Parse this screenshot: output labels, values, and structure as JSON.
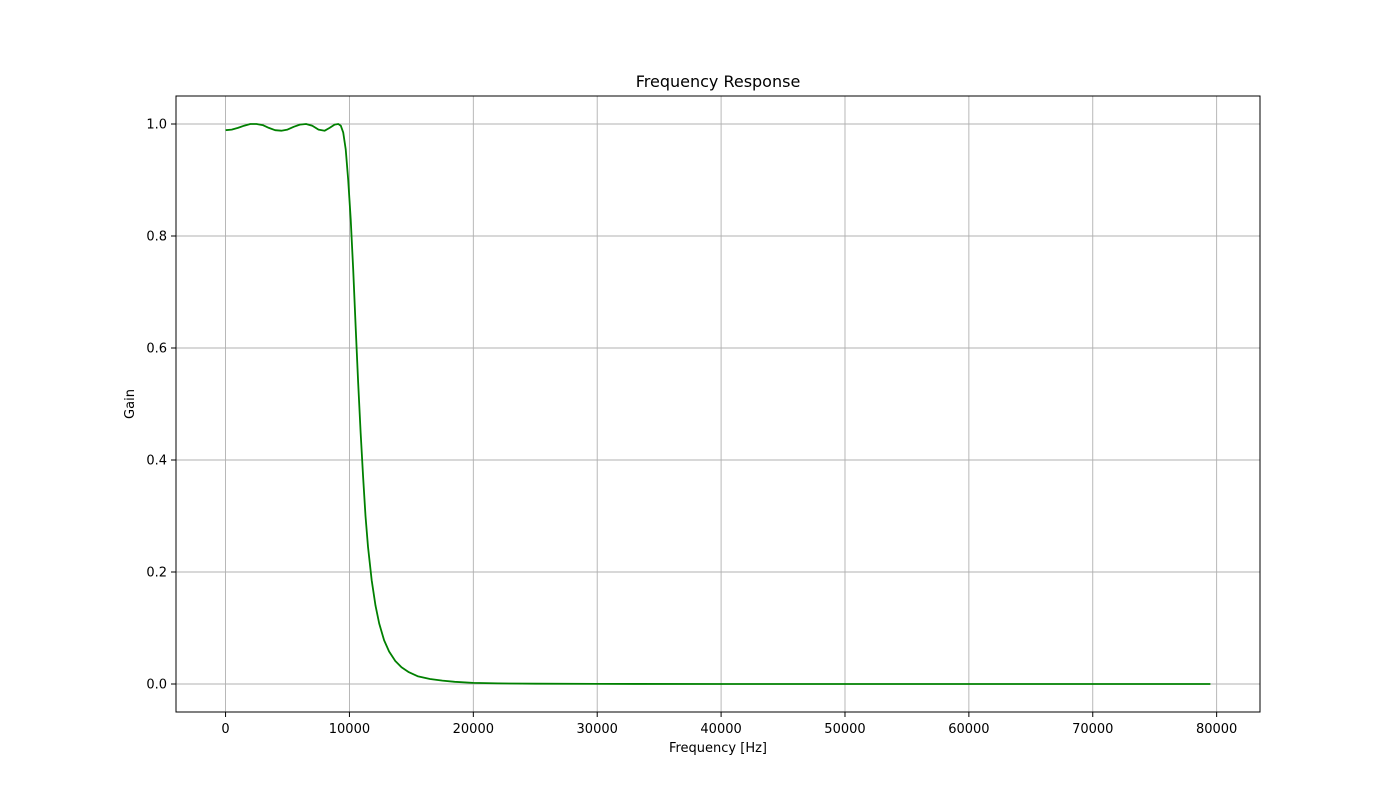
{
  "chart_data": {
    "type": "line",
    "title": "Frequency Response",
    "xlabel": "Frequency [Hz]",
    "ylabel": "Gain",
    "xlim": [
      -4000,
      83500
    ],
    "ylim": [
      -0.05,
      1.05
    ],
    "x_ticks": [
      0,
      10000,
      20000,
      30000,
      40000,
      50000,
      60000,
      70000,
      80000
    ],
    "x_tick_labels": [
      "0",
      "10000",
      "20000",
      "30000",
      "40000",
      "50000",
      "60000",
      "70000",
      "80000"
    ],
    "y_ticks": [
      0.0,
      0.2,
      0.4,
      0.6,
      0.8,
      1.0
    ],
    "y_tick_labels": [
      "0.0",
      "0.2",
      "0.4",
      "0.6",
      "0.8",
      "1.0"
    ],
    "grid": true,
    "series": [
      {
        "color": "#008000",
        "x": [
          0,
          500,
          1000,
          1500,
          2000,
          2500,
          3000,
          3500,
          4000,
          4500,
          5000,
          5500,
          6000,
          6500,
          7000,
          7500,
          8000,
          8400,
          8800,
          9100,
          9300,
          9500,
          9700,
          9900,
          10100,
          10300,
          10500,
          10700,
          10900,
          11100,
          11300,
          11500,
          11800,
          12100,
          12400,
          12800,
          13200,
          13700,
          14200,
          14800,
          15500,
          16500,
          17500,
          18500,
          20000,
          22000,
          25000,
          30000,
          40000,
          50000,
          60000,
          70000,
          79500
        ],
        "y": [
          0.989,
          0.99,
          0.993,
          0.997,
          1.0,
          1.0,
          0.998,
          0.993,
          0.989,
          0.988,
          0.99,
          0.995,
          0.999,
          1.0,
          0.997,
          0.99,
          0.988,
          0.993,
          0.999,
          1.0,
          0.997,
          0.985,
          0.955,
          0.9,
          0.83,
          0.74,
          0.64,
          0.54,
          0.45,
          0.37,
          0.3,
          0.245,
          0.185,
          0.14,
          0.108,
          0.078,
          0.058,
          0.041,
          0.03,
          0.021,
          0.014,
          0.009,
          0.006,
          0.004,
          0.002,
          0.001,
          0.0005,
          0.0002,
          0.0,
          0.0,
          0.0,
          0.0,
          0.0
        ]
      }
    ]
  }
}
